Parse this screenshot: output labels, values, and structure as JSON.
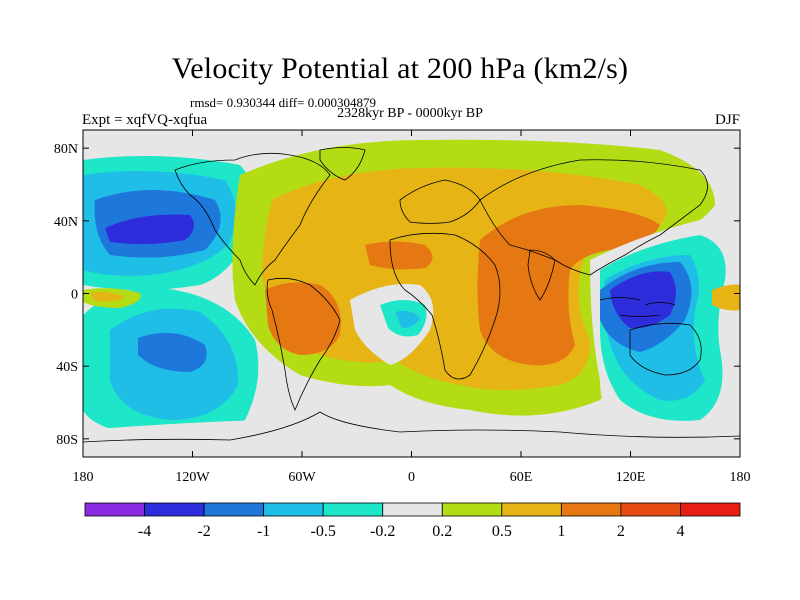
{
  "header": {
    "title": "Velocity Potential at 200 hPa (km2/s)",
    "stats": "rmsd= 0.930344  diff= 0.000304879",
    "subtitle": "2328kyr BP - 0000kyr BP",
    "left_label": "Expt = xqfVQ-xqfua",
    "right_label": "DJF"
  },
  "map": {
    "lat_ticks": [
      {
        "label": "80N",
        "lat": 80
      },
      {
        "label": "40N",
        "lat": 40
      },
      {
        "label": "0",
        "lat": 0
      },
      {
        "label": "40S",
        "lat": -40
      },
      {
        "label": "80S",
        "lat": -80
      }
    ],
    "lon_ticks": [
      {
        "label": "180",
        "lon": -180
      },
      {
        "label": "120W",
        "lon": -120
      },
      {
        "label": "60W",
        "lon": -60
      },
      {
        "label": "0",
        "lon": 0
      },
      {
        "label": "60E",
        "lon": 60
      },
      {
        "label": "120E",
        "lon": 120
      },
      {
        "label": "180",
        "lon": 180
      }
    ]
  },
  "colorbar": {
    "colors": [
      "#8a2be2",
      "#2d2ddc",
      "#1e78dc",
      "#1ebee6",
      "#1ee6c8",
      "#e6e6e6",
      "#b4dc14",
      "#e6b414",
      "#e67814",
      "#e64b14",
      "#e61e14"
    ],
    "labels": [
      "-4",
      "-2",
      "-1",
      "-0.5",
      "-0.2",
      "0.2",
      "0.5",
      "1",
      "2",
      "4"
    ]
  },
  "colors": {
    "neutral": "#e6e6e6",
    "coastline": "#000000"
  }
}
